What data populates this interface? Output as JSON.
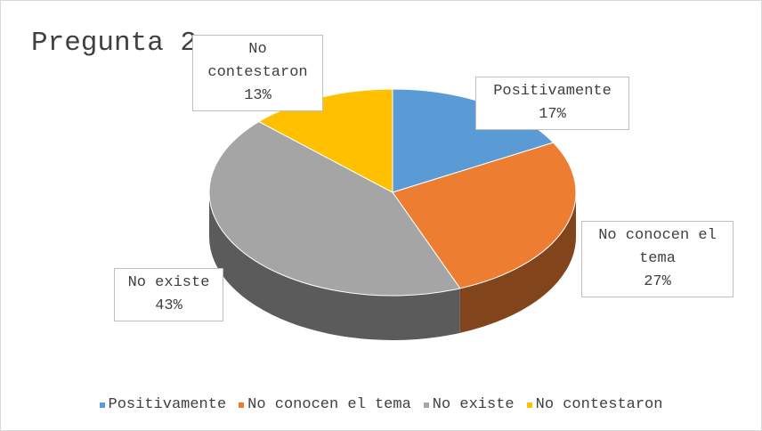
{
  "chart_data": {
    "type": "pie",
    "title": "Pregunta 2.",
    "categories": [
      "Positivamente",
      "No conocen el tema",
      "No existe",
      "No contestaron"
    ],
    "values": [
      17,
      27,
      43,
      13
    ],
    "value_labels": [
      "17%",
      "27%",
      "43%",
      "13%"
    ],
    "colors": [
      "#5b9bd5",
      "#ed7d31",
      "#a5a5a5",
      "#ffc000"
    ],
    "legend": "bottom"
  }
}
